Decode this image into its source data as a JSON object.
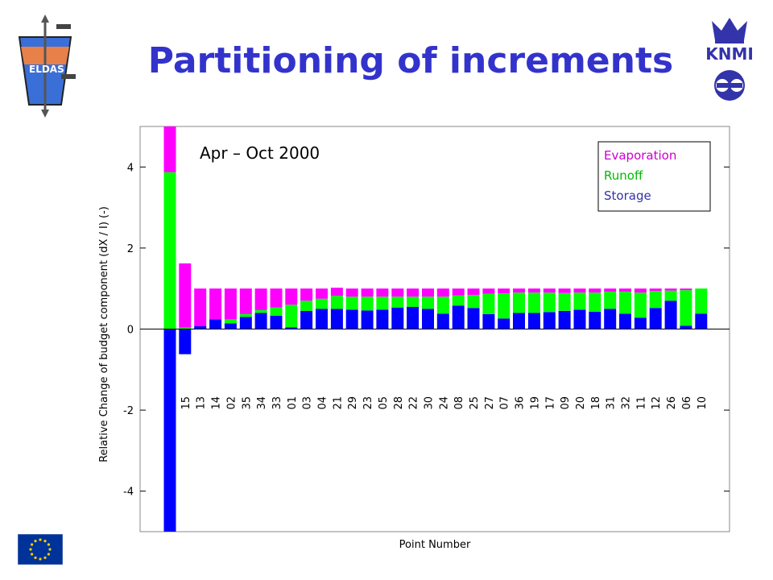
{
  "slide": {
    "title": "Partitioning of increments",
    "logo_left_text": "ELDAS",
    "logo_right_text": "KNMI"
  },
  "chart_data": {
    "type": "bar",
    "stacked": true,
    "period_label": "Apr – Oct 2000",
    "xlabel": "Point Number",
    "ylabel": "Relative Change of budget component (dX / I) (-)",
    "ylim": [
      -5,
      5
    ],
    "yticks": [
      -4,
      -2,
      0,
      2,
      4
    ],
    "grid": false,
    "legend_position": "top-right",
    "categories": [
      "",
      "15",
      "13",
      "14",
      "02",
      "35",
      "34",
      "33",
      "01",
      "03",
      "04",
      "21",
      "29",
      "23",
      "05",
      "28",
      "22",
      "30",
      "24",
      "08",
      "25",
      "27",
      "07",
      "36",
      "19",
      "17",
      "09",
      "20",
      "18",
      "31",
      "32",
      "11",
      "12",
      "26",
      "06",
      "10"
    ],
    "series": [
      {
        "name": "Storage",
        "color": "#0000ff",
        "values": [
          -5.0,
          -0.62,
          0.07,
          0.24,
          0.14,
          0.3,
          0.4,
          0.33,
          0.04,
          0.45,
          0.5,
          0.5,
          0.48,
          0.46,
          0.48,
          0.53,
          0.55,
          0.5,
          0.38,
          0.58,
          0.52,
          0.37,
          0.26,
          0.4,
          0.4,
          0.42,
          0.45,
          0.48,
          0.43,
          0.5,
          0.38,
          0.28,
          0.52,
          0.7,
          0.08,
          0.38
        ]
      },
      {
        "name": "Runoff",
        "color": "#00ff00",
        "values": [
          3.87,
          0.04,
          0.0,
          0.0,
          0.1,
          0.07,
          0.07,
          0.2,
          0.56,
          0.25,
          0.25,
          0.32,
          0.32,
          0.34,
          0.32,
          0.27,
          0.25,
          0.3,
          0.42,
          0.25,
          0.32,
          0.5,
          0.62,
          0.5,
          0.5,
          0.48,
          0.44,
          0.42,
          0.47,
          0.42,
          0.54,
          0.62,
          0.42,
          0.25,
          0.88,
          0.62
        ]
      },
      {
        "name": "Evaporation",
        "color": "#ff00ff",
        "values": [
          1.13,
          1.58,
          0.93,
          0.76,
          0.76,
          0.63,
          0.53,
          0.47,
          0.4,
          0.3,
          0.25,
          0.2,
          0.2,
          0.2,
          0.2,
          0.2,
          0.2,
          0.2,
          0.2,
          0.17,
          0.16,
          0.13,
          0.12,
          0.1,
          0.1,
          0.1,
          0.11,
          0.1,
          0.1,
          0.08,
          0.08,
          0.1,
          0.06,
          0.05,
          0.04,
          0.0
        ]
      }
    ],
    "legend_order": [
      "Evaporation",
      "Runoff",
      "Storage"
    ]
  }
}
